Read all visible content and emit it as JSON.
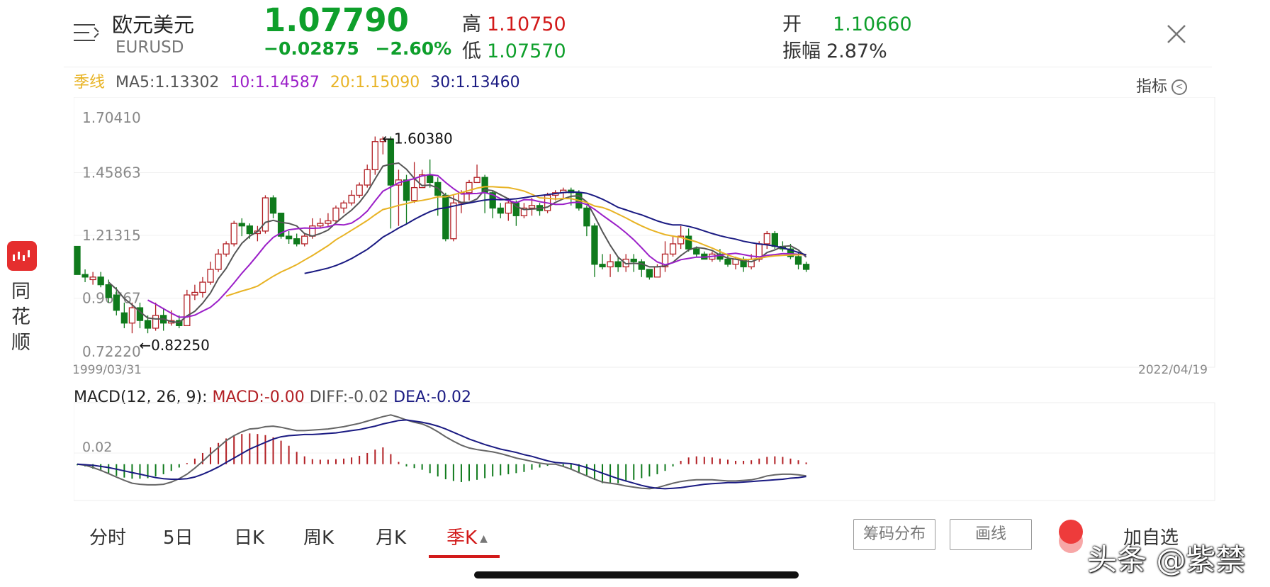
{
  "header": {
    "name": "欧元美元",
    "symbol": "EURUSD",
    "price": "1.07790",
    "change": "−0.02875",
    "change_pct": "−2.60%",
    "high_label": "高",
    "high": "1.10750",
    "low_label": "低",
    "low": "1.07570",
    "open_label": "开",
    "open": "1.10660",
    "amp_label": "振幅",
    "amp": "2.87%"
  },
  "ma_legend": {
    "period": "季线",
    "ma5": "MA5:1.13302",
    "ma10": "10:1.14587",
    "ma20": "20:1.15090",
    "ma30": "30:1.13460"
  },
  "indicator_label": "指标",
  "main_chart": {
    "y_ticks": [
      "1.70410",
      "1.45863",
      "1.21315",
      "0.96767",
      "0.72220"
    ],
    "date_start": "1999/03/31",
    "date_end": "2022/04/19",
    "max_label": "←1.60380",
    "min_label": "←0.82250"
  },
  "macd": {
    "title": "MACD(12, 26, 9): ",
    "macd_val": "MACD:-0.00",
    "diff_val": "DIFF:-0.02",
    "dea_val": "DEA:-0.02",
    "y_tick": "0.02"
  },
  "sidebar": {
    "app_name": "同花顺"
  },
  "tabs": [
    "分时",
    "5日",
    "日K",
    "周K",
    "月K",
    "季K"
  ],
  "active_tab": "季K",
  "tools": {
    "chips": "筹码分布",
    "draw": "画线",
    "favorite": "加自选"
  },
  "watermark": "头条 @紫禁",
  "colors": {
    "up": "#b21f24",
    "down": "#0f7a1c",
    "ma5": "#555555",
    "ma10": "#9b1fc8",
    "ma20": "#e8b324",
    "ma30": "#1a1a82",
    "accent": "#d21a1a",
    "price_green": "#0e9f2b"
  },
  "chart_data": {
    "type": "candlestick",
    "title": "欧元美元 EURUSD",
    "period": "季K",
    "ylim": [
      0.7222,
      1.7041
    ],
    "date_start": "1999/03/31",
    "date_end": "2022/04/19",
    "candles": [
      [
        1.17,
        1.06,
        1.17,
        1.06
      ],
      [
        1.06,
        1.05,
        1.08,
        1.03
      ],
      [
        1.04,
        1.05,
        1.07,
        1.02
      ],
      [
        1.05,
        1.02,
        1.07,
        1.01
      ],
      [
        1.02,
        0.97,
        1.04,
        0.95
      ],
      [
        0.98,
        0.92,
        1.01,
        0.9
      ],
      [
        0.91,
        0.87,
        0.95,
        0.85
      ],
      [
        0.87,
        0.93,
        0.95,
        0.83
      ],
      [
        0.93,
        0.88,
        0.95,
        0.85
      ],
      [
        0.88,
        0.85,
        0.9,
        0.83
      ],
      [
        0.85,
        0.9,
        0.95,
        0.84
      ],
      [
        0.9,
        0.87,
        0.93,
        0.84
      ],
      [
        0.87,
        0.88,
        0.92,
        0.86
      ],
      [
        0.88,
        0.86,
        0.9,
        0.85
      ],
      [
        0.86,
        0.98,
        1.0,
        0.86
      ],
      [
        0.98,
        0.99,
        1.02,
        0.96
      ],
      [
        0.99,
        1.03,
        1.05,
        0.97
      ],
      [
        1.03,
        1.08,
        1.11,
        1.02
      ],
      [
        1.08,
        1.14,
        1.16,
        1.07
      ],
      [
        1.14,
        1.18,
        1.19,
        1.13
      ],
      [
        1.18,
        1.26,
        1.27,
        1.17
      ],
      [
        1.26,
        1.25,
        1.28,
        1.21
      ],
      [
        1.25,
        1.22,
        1.26,
        1.2
      ],
      [
        1.22,
        1.23,
        1.25,
        1.19
      ],
      [
        1.23,
        1.36,
        1.37,
        1.22
      ],
      [
        1.36,
        1.3,
        1.37,
        1.28
      ],
      [
        1.3,
        1.21,
        1.3,
        1.2
      ],
      [
        1.21,
        1.2,
        1.23,
        1.18
      ],
      [
        1.2,
        1.18,
        1.22,
        1.17
      ],
      [
        1.18,
        1.21,
        1.22,
        1.17
      ],
      [
        1.21,
        1.25,
        1.28,
        1.2
      ],
      [
        1.25,
        1.26,
        1.28,
        1.24
      ],
      [
        1.26,
        1.27,
        1.3,
        1.25
      ],
      [
        1.27,
        1.32,
        1.33,
        1.26
      ],
      [
        1.32,
        1.34,
        1.35,
        1.3
      ],
      [
        1.34,
        1.37,
        1.39,
        1.33
      ],
      [
        1.37,
        1.41,
        1.42,
        1.36
      ],
      [
        1.41,
        1.47,
        1.49,
        1.4
      ],
      [
        1.47,
        1.58,
        1.6,
        1.45
      ],
      [
        1.58,
        1.59,
        1.6,
        1.53
      ],
      [
        1.59,
        1.41,
        1.6,
        1.24
      ],
      [
        1.41,
        1.43,
        1.47,
        1.25
      ],
      [
        1.43,
        1.35,
        1.45,
        1.26
      ],
      [
        1.35,
        1.4,
        1.5,
        1.34
      ],
      [
        1.4,
        1.45,
        1.47,
        1.4
      ],
      [
        1.45,
        1.42,
        1.51,
        1.4
      ],
      [
        1.42,
        1.37,
        1.44,
        1.29
      ],
      [
        1.37,
        1.2,
        1.38,
        1.19
      ],
      [
        1.2,
        1.34,
        1.37,
        1.19
      ],
      [
        1.34,
        1.38,
        1.39,
        1.3
      ],
      [
        1.38,
        1.42,
        1.43,
        1.35
      ],
      [
        1.42,
        1.44,
        1.49,
        1.42
      ],
      [
        1.44,
        1.38,
        1.45,
        1.3
      ],
      [
        1.38,
        1.32,
        1.39,
        1.28
      ],
      [
        1.32,
        1.3,
        1.34,
        1.28
      ],
      [
        1.3,
        1.34,
        1.36,
        1.27
      ],
      [
        1.34,
        1.29,
        1.35,
        1.25
      ],
      [
        1.29,
        1.32,
        1.34,
        1.28
      ],
      [
        1.32,
        1.33,
        1.36,
        1.29
      ],
      [
        1.33,
        1.31,
        1.34,
        1.29
      ],
      [
        1.31,
        1.37,
        1.38,
        1.3
      ],
      [
        1.37,
        1.38,
        1.39,
        1.35
      ],
      [
        1.38,
        1.39,
        1.4,
        1.36
      ],
      [
        1.39,
        1.38,
        1.4,
        1.33
      ],
      [
        1.38,
        1.32,
        1.39,
        1.31
      ],
      [
        1.32,
        1.25,
        1.33,
        1.21
      ],
      [
        1.25,
        1.1,
        1.26,
        1.05
      ],
      [
        1.1,
        1.09,
        1.14,
        1.08
      ],
      [
        1.09,
        1.11,
        1.14,
        1.05
      ],
      [
        1.11,
        1.09,
        1.13,
        1.07
      ],
      [
        1.09,
        1.12,
        1.14,
        1.07
      ],
      [
        1.12,
        1.11,
        1.14,
        1.07
      ],
      [
        1.11,
        1.08,
        1.12,
        1.05
      ],
      [
        1.08,
        1.05,
        1.08,
        1.04
      ],
      [
        1.05,
        1.09,
        1.1,
        1.05
      ],
      [
        1.09,
        1.14,
        1.19,
        1.07
      ],
      [
        1.14,
        1.18,
        1.21,
        1.13
      ],
      [
        1.18,
        1.21,
        1.25,
        1.16
      ],
      [
        1.21,
        1.16,
        1.24,
        1.15
      ],
      [
        1.16,
        1.14,
        1.17,
        1.13
      ],
      [
        1.14,
        1.12,
        1.15,
        1.12
      ],
      [
        1.12,
        1.14,
        1.15,
        1.11
      ],
      [
        1.14,
        1.12,
        1.16,
        1.11
      ],
      [
        1.12,
        1.1,
        1.14,
        1.09
      ],
      [
        1.1,
        1.12,
        1.13,
        1.08
      ],
      [
        1.12,
        1.09,
        1.13,
        1.07
      ],
      [
        1.09,
        1.12,
        1.14,
        1.08
      ],
      [
        1.12,
        1.18,
        1.19,
        1.11
      ],
      [
        1.18,
        1.22,
        1.23,
        1.16
      ],
      [
        1.22,
        1.17,
        1.23,
        1.16
      ],
      [
        1.17,
        1.16,
        1.19,
        1.15
      ],
      [
        1.16,
        1.13,
        1.18,
        1.12
      ],
      [
        1.13,
        1.1,
        1.15,
        1.08
      ],
      [
        1.1,
        1.08,
        1.11,
        1.07
      ]
    ],
    "macd_hist": [
      -0.002,
      -0.004,
      -0.008,
      -0.012,
      -0.017,
      -0.021,
      -0.024,
      -0.026,
      -0.026,
      -0.025,
      -0.022,
      -0.018,
      -0.012,
      -0.006,
      0.002,
      0.01,
      0.02,
      0.03,
      0.038,
      0.046,
      0.051,
      0.054,
      0.055,
      0.054,
      0.052,
      0.048,
      0.042,
      0.033,
      0.022,
      0.014,
      0.009,
      0.008,
      0.008,
      0.009,
      0.01,
      0.012,
      0.015,
      0.02,
      0.026,
      0.03,
      0.018,
      0.004,
      -0.004,
      -0.007,
      -0.01,
      -0.016,
      -0.022,
      -0.027,
      -0.03,
      -0.032,
      -0.03,
      -0.028,
      -0.025,
      -0.022,
      -0.02,
      -0.018,
      -0.016,
      -0.014,
      -0.01,
      -0.006,
      -0.003,
      0.001,
      -0.005,
      -0.01,
      -0.016,
      -0.022,
      -0.028,
      -0.034,
      -0.035,
      -0.034,
      -0.031,
      -0.028,
      -0.025,
      -0.022,
      -0.018,
      -0.012,
      -0.004,
      0.006,
      0.012,
      0.014,
      0.013,
      0.012,
      0.01,
      0.008,
      0.006,
      0.006,
      0.007,
      0.01,
      0.013,
      0.014,
      0.013,
      0.01,
      0.007,
      0.003
    ],
    "diff": [
      0.0,
      -0.002,
      -0.006,
      -0.011,
      -0.017,
      -0.023,
      -0.029,
      -0.034,
      -0.036,
      -0.037,
      -0.037,
      -0.036,
      -0.032,
      -0.026,
      -0.018,
      -0.007,
      0.005,
      0.018,
      0.03,
      0.042,
      0.051,
      0.058,
      0.063,
      0.064,
      0.067,
      0.068,
      0.066,
      0.063,
      0.06,
      0.06,
      0.061,
      0.062,
      0.063,
      0.065,
      0.067,
      0.07,
      0.073,
      0.077,
      0.081,
      0.085,
      0.088,
      0.084,
      0.079,
      0.075,
      0.072,
      0.066,
      0.058,
      0.049,
      0.041,
      0.034,
      0.029,
      0.026,
      0.024,
      0.022,
      0.019,
      0.015,
      0.011,
      0.008,
      0.005,
      0.002,
      0.0,
      0.0,
      -0.004,
      -0.009,
      -0.015,
      -0.021,
      -0.027,
      -0.032,
      -0.034,
      -0.036,
      -0.039,
      -0.041,
      -0.043,
      -0.044,
      -0.042,
      -0.038,
      -0.034,
      -0.031,
      -0.029,
      -0.028,
      -0.028,
      -0.028,
      -0.029,
      -0.03,
      -0.03,
      -0.029,
      -0.028,
      -0.025,
      -0.021,
      -0.019,
      -0.018,
      -0.018,
      -0.019,
      -0.021
    ],
    "dea": [
      0.0,
      -0.001,
      -0.002,
      -0.004,
      -0.006,
      -0.009,
      -0.012,
      -0.015,
      -0.018,
      -0.021,
      -0.024,
      -0.026,
      -0.027,
      -0.027,
      -0.026,
      -0.023,
      -0.018,
      -0.012,
      -0.005,
      0.003,
      0.011,
      0.019,
      0.027,
      0.033,
      0.039,
      0.045,
      0.049,
      0.051,
      0.052,
      0.053,
      0.053,
      0.054,
      0.055,
      0.056,
      0.058,
      0.06,
      0.062,
      0.065,
      0.068,
      0.072,
      0.075,
      0.078,
      0.079,
      0.077,
      0.075,
      0.072,
      0.068,
      0.063,
      0.057,
      0.051,
      0.045,
      0.04,
      0.035,
      0.031,
      0.027,
      0.024,
      0.021,
      0.017,
      0.014,
      0.01,
      0.006,
      0.003,
      0.002,
      0.001,
      -0.002,
      -0.006,
      -0.011,
      -0.016,
      -0.021,
      -0.026,
      -0.03,
      -0.034,
      -0.038,
      -0.041,
      -0.043,
      -0.044,
      -0.043,
      -0.042,
      -0.04,
      -0.038,
      -0.036,
      -0.035,
      -0.034,
      -0.033,
      -0.033,
      -0.032,
      -0.031,
      -0.03,
      -0.029,
      -0.028,
      -0.027,
      -0.025,
      -0.024,
      -0.022
    ],
    "macd_ylim": [
      -0.065,
      0.11
    ]
  }
}
